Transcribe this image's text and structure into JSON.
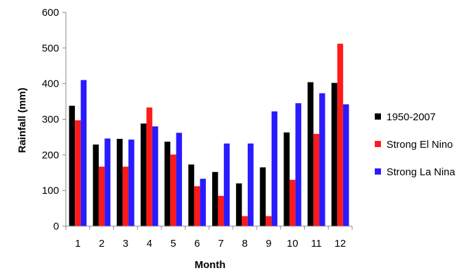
{
  "chart_data": {
    "type": "bar",
    "xlabel": "Month",
    "ylabel": "Rainfall (mm)",
    "ylim": [
      0,
      600
    ],
    "yticks": [
      0,
      100,
      200,
      300,
      400,
      500,
      600
    ],
    "grid": false,
    "legend_position": "right",
    "categories": [
      "1",
      "2",
      "3",
      "4",
      "5",
      "6",
      "7",
      "8",
      "9",
      "10",
      "11",
      "12"
    ],
    "series": [
      {
        "name": "1950-2007",
        "color": "#000000",
        "values": [
          338,
          229,
          245,
          288,
          237,
          173,
          152,
          120,
          165,
          263,
          404,
          402
        ]
      },
      {
        "name": "Strong El Nino",
        "color": "#ff1a1a",
        "values": [
          297,
          167,
          167,
          333,
          201,
          112,
          85,
          28,
          28,
          130,
          259,
          512
        ]
      },
      {
        "name": "Strong La Nina",
        "color": "#2a1aff",
        "values": [
          410,
          246,
          243,
          280,
          262,
          133,
          232,
          232,
          322,
          345,
          373,
          342
        ]
      }
    ]
  }
}
